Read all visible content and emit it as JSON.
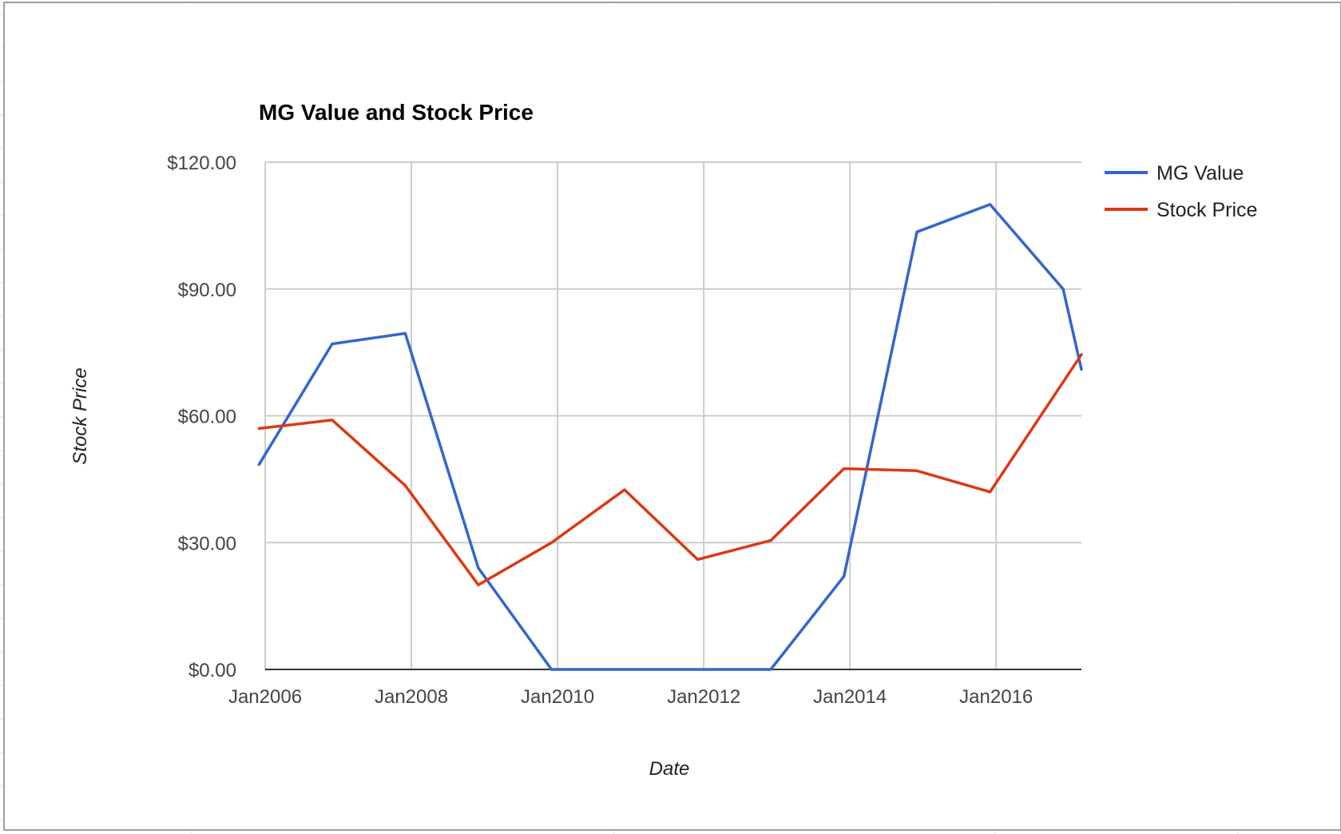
{
  "chart_data": {
    "type": "line",
    "title": "MG Value and Stock Price",
    "xlabel": "Date",
    "ylabel": "Stock Price",
    "x_ticks": [
      "Jan2006",
      "Jan2008",
      "Jan2010",
      "Jan2012",
      "Jan2014",
      "Jan2016"
    ],
    "x_range": [
      "2006-01",
      "2017-03"
    ],
    "y_ticks": [
      "$0.00",
      "$30.00",
      "$60.00",
      "$90.00",
      "$120.00"
    ],
    "ylim": [
      0,
      120
    ],
    "grid": true,
    "legend_position": "right",
    "series": [
      {
        "name": "MG Value",
        "color": "#3366cc",
        "points": [
          {
            "x": "2005-12",
            "y": 48.5
          },
          {
            "x": "2006-12",
            "y": 77
          },
          {
            "x": "2007-12",
            "y": 79.5
          },
          {
            "x": "2008-12",
            "y": 24
          },
          {
            "x": "2009-12",
            "y": 0
          },
          {
            "x": "2010-12",
            "y": 0
          },
          {
            "x": "2011-12",
            "y": 0
          },
          {
            "x": "2012-12",
            "y": 0
          },
          {
            "x": "2013-12",
            "y": 22
          },
          {
            "x": "2014-12",
            "y": 103.5
          },
          {
            "x": "2015-12",
            "y": 110
          },
          {
            "x": "2016-12",
            "y": 90
          },
          {
            "x": "2017-03",
            "y": 71
          }
        ]
      },
      {
        "name": "Stock Price",
        "color": "#dc3912",
        "points": [
          {
            "x": "2005-12",
            "y": 57
          },
          {
            "x": "2006-12",
            "y": 59
          },
          {
            "x": "2007-12",
            "y": 43.5
          },
          {
            "x": "2008-12",
            "y": 20
          },
          {
            "x": "2009-12",
            "y": 30
          },
          {
            "x": "2010-12",
            "y": 42.5
          },
          {
            "x": "2011-12",
            "y": 26
          },
          {
            "x": "2012-12",
            "y": 30.5
          },
          {
            "x": "2013-12",
            "y": 47.5
          },
          {
            "x": "2014-12",
            "y": 47
          },
          {
            "x": "2015-12",
            "y": 42
          },
          {
            "x": "2017-03",
            "y": 74.5
          }
        ]
      }
    ]
  }
}
